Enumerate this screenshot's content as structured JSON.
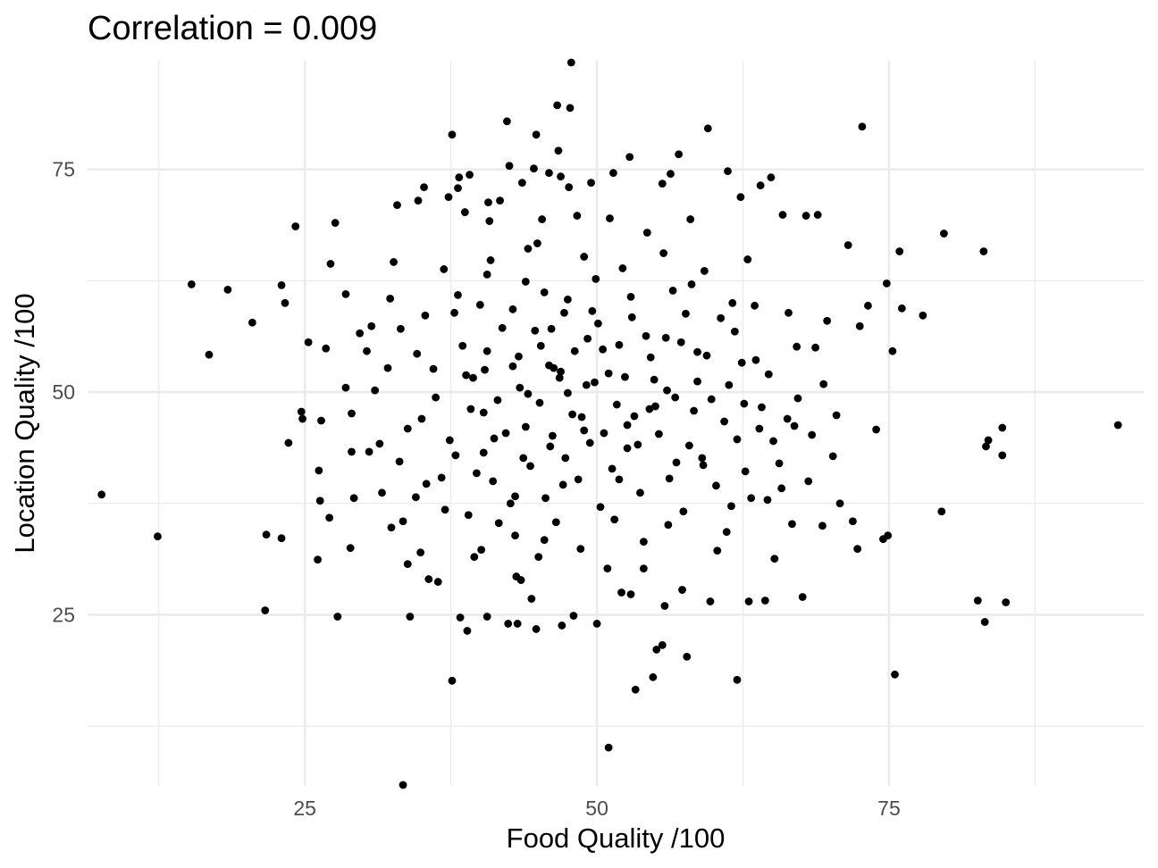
{
  "chart_data": {
    "type": "scatter",
    "title": "Correlation = 0.009",
    "xlabel": "Food Quality /100",
    "ylabel": "Location Quality /100",
    "xlim": [
      6.4,
      96.8
    ],
    "ylim": [
      5.8,
      87.2
    ],
    "x_ticks": [
      25,
      50,
      75
    ],
    "y_ticks": [
      25,
      50,
      75
    ],
    "grid": true,
    "legend": "none",
    "point_color": "#000000",
    "points": [
      [
        7.6,
        38.5
      ],
      [
        12.4,
        33.8
      ],
      [
        15.3,
        62.1
      ],
      [
        16.8,
        54.2
      ],
      [
        18.4,
        61.5
      ],
      [
        20.5,
        57.8
      ],
      [
        21.6,
        25.5
      ],
      [
        21.7,
        34.0
      ],
      [
        23.0,
        62.0
      ],
      [
        23.3,
        60.0
      ],
      [
        23.0,
        33.6
      ],
      [
        23.6,
        44.3
      ],
      [
        24.2,
        68.6
      ],
      [
        24.7,
        47.8
      ],
      [
        24.8,
        47.0
      ],
      [
        25.3,
        55.6
      ],
      [
        26.2,
        41.2
      ],
      [
        26.3,
        37.8
      ],
      [
        26.4,
        46.8
      ],
      [
        26.8,
        54.9
      ],
      [
        27.1,
        35.9
      ],
      [
        27.2,
        64.4
      ],
      [
        27.6,
        69.0
      ],
      [
        27.8,
        24.8
      ],
      [
        28.5,
        50.5
      ],
      [
        28.5,
        61.0
      ],
      [
        28.9,
        32.5
      ],
      [
        29.0,
        47.6
      ],
      [
        29.0,
        43.3
      ],
      [
        29.2,
        38.1
      ],
      [
        29.7,
        56.6
      ],
      [
        30.3,
        54.6
      ],
      [
        30.7,
        57.4
      ],
      [
        31.4,
        44.2
      ],
      [
        31.6,
        38.7
      ],
      [
        32.3,
        60.5
      ],
      [
        32.4,
        34.8
      ],
      [
        32.6,
        64.6
      ],
      [
        32.9,
        71.0
      ],
      [
        33.1,
        42.2
      ],
      [
        33.4,
        5.9
      ],
      [
        33.4,
        35.5
      ],
      [
        33.8,
        30.7
      ],
      [
        34.0,
        24.8
      ],
      [
        34.5,
        38.2
      ],
      [
        34.7,
        71.5
      ],
      [
        34.9,
        32.0
      ],
      [
        35.2,
        73.0
      ],
      [
        35.4,
        39.7
      ],
      [
        35.6,
        29.0
      ],
      [
        36.0,
        52.6
      ],
      [
        36.4,
        28.7
      ],
      [
        37.0,
        36.8
      ],
      [
        37.3,
        71.9
      ],
      [
        37.6,
        17.6
      ],
      [
        37.6,
        78.9
      ],
      [
        37.8,
        58.9
      ],
      [
        38.1,
        72.9
      ],
      [
        38.2,
        74.1
      ],
      [
        38.3,
        24.7
      ],
      [
        38.7,
        70.2
      ],
      [
        38.9,
        23.2
      ],
      [
        39.1,
        74.4
      ],
      [
        39.4,
        51.6
      ],
      [
        39.5,
        31.5
      ],
      [
        40.1,
        32.3
      ],
      [
        40.3,
        43.2
      ],
      [
        40.6,
        24.8
      ],
      [
        40.6,
        63.2
      ],
      [
        40.7,
        71.3
      ],
      [
        40.8,
        69.2
      ],
      [
        40.6,
        54.6
      ],
      [
        41.1,
        40.0
      ],
      [
        41.6,
        35.3
      ],
      [
        41.7,
        71.5
      ],
      [
        42.3,
        80.4
      ],
      [
        42.4,
        24.0
      ],
      [
        42.5,
        75.4
      ],
      [
        42.8,
        52.9
      ],
      [
        43.0,
        38.3
      ],
      [
        43.1,
        29.3
      ],
      [
        43.2,
        24.0
      ],
      [
        43.5,
        28.9
      ],
      [
        43.6,
        73.5
      ],
      [
        43.9,
        46.1
      ],
      [
        43.9,
        62.4
      ],
      [
        44.1,
        66.1
      ],
      [
        44.4,
        26.8
      ],
      [
        44.6,
        75.1
      ],
      [
        44.8,
        23.4
      ],
      [
        44.8,
        78.9
      ],
      [
        45.0,
        31.5
      ],
      [
        45.2,
        55.2
      ],
      [
        45.3,
        69.4
      ],
      [
        45.5,
        33.4
      ],
      [
        45.9,
        74.6
      ],
      [
        46.1,
        57.1
      ],
      [
        46.3,
        52.7
      ],
      [
        46.6,
        82.2
      ],
      [
        46.7,
        77.1
      ],
      [
        46.9,
        74.2
      ],
      [
        46.9,
        52.3
      ],
      [
        47.0,
        23.8
      ],
      [
        47.2,
        58.9
      ],
      [
        47.5,
        60.4
      ],
      [
        47.7,
        81.9
      ],
      [
        47.8,
        87.0
      ],
      [
        47.6,
        73.0
      ],
      [
        47.9,
        47.5
      ],
      [
        48.0,
        24.9
      ],
      [
        48.3,
        69.8
      ],
      [
        48.6,
        32.4
      ],
      [
        48.9,
        45.7
      ],
      [
        49.2,
        56.0
      ],
      [
        49.5,
        73.5
      ],
      [
        49.8,
        51.1
      ],
      [
        50.0,
        24.0
      ],
      [
        50.6,
        45.4
      ],
      [
        50.9,
        30.2
      ],
      [
        51.0,
        10.1
      ],
      [
        51.1,
        69.5
      ],
      [
        51.4,
        74.6
      ],
      [
        51.5,
        35.7
      ],
      [
        51.9,
        40.2
      ],
      [
        52.1,
        27.5
      ],
      [
        52.6,
        46.3
      ],
      [
        52.8,
        76.4
      ],
      [
        52.9,
        27.3
      ],
      [
        53.3,
        16.6
      ],
      [
        53.5,
        44.1
      ],
      [
        54.0,
        30.2
      ],
      [
        54.3,
        67.9
      ],
      [
        54.5,
        48.1
      ],
      [
        54.8,
        18.0
      ],
      [
        55.1,
        21.1
      ],
      [
        55.6,
        21.6
      ],
      [
        55.6,
        73.4
      ],
      [
        55.8,
        26.0
      ],
      [
        56.1,
        35.1
      ],
      [
        56.3,
        74.5
      ],
      [
        56.7,
        49.4
      ],
      [
        57.0,
        76.7
      ],
      [
        57.3,
        27.8
      ],
      [
        57.7,
        20.3
      ],
      [
        58.0,
        69.4
      ],
      [
        58.6,
        54.5
      ],
      [
        59.0,
        42.6
      ],
      [
        59.5,
        79.6
      ],
      [
        59.7,
        26.5
      ],
      [
        60.3,
        32.2
      ],
      [
        60.6,
        58.3
      ],
      [
        61.2,
        74.8
      ],
      [
        61.6,
        60.0
      ],
      [
        62.0,
        17.7
      ],
      [
        62.3,
        71.9
      ],
      [
        62.6,
        48.7
      ],
      [
        63.0,
        26.5
      ],
      [
        63.2,
        38.1
      ],
      [
        63.6,
        53.6
      ],
      [
        64.0,
        73.2
      ],
      [
        64.4,
        26.6
      ],
      [
        64.9,
        74.1
      ],
      [
        65.2,
        31.3
      ],
      [
        65.6,
        42.0
      ],
      [
        65.9,
        69.9
      ],
      [
        66.3,
        47.0
      ],
      [
        66.7,
        35.2
      ],
      [
        67.1,
        55.1
      ],
      [
        67.6,
        27.0
      ],
      [
        67.9,
        69.8
      ],
      [
        68.4,
        45.2
      ],
      [
        68.9,
        69.9
      ],
      [
        69.3,
        35.0
      ],
      [
        69.7,
        58.0
      ],
      [
        70.2,
        42.8
      ],
      [
        70.8,
        37.5
      ],
      [
        71.5,
        66.5
      ],
      [
        71.9,
        35.5
      ],
      [
        72.3,
        32.4
      ],
      [
        72.5,
        57.4
      ],
      [
        72.7,
        79.8
      ],
      [
        73.2,
        59.7
      ],
      [
        73.9,
        45.8
      ],
      [
        74.5,
        33.5
      ],
      [
        74.8,
        62.2
      ],
      [
        74.9,
        33.9
      ],
      [
        75.3,
        54.6
      ],
      [
        75.5,
        18.3
      ],
      [
        75.9,
        65.8
      ],
      [
        76.1,
        59.4
      ],
      [
        77.9,
        58.6
      ],
      [
        79.5,
        36.6
      ],
      [
        79.7,
        67.8
      ],
      [
        82.6,
        26.6
      ],
      [
        83.1,
        65.8
      ],
      [
        83.2,
        24.2
      ],
      [
        83.3,
        43.9
      ],
      [
        83.5,
        44.6
      ],
      [
        84.7,
        46.0
      ],
      [
        84.7,
        42.9
      ],
      [
        85.0,
        26.4
      ],
      [
        94.6,
        46.3
      ],
      [
        26.1,
        31.2
      ],
      [
        30.5,
        43.3
      ],
      [
        36.9,
        63.8
      ],
      [
        39.2,
        48.1
      ],
      [
        44.1,
        49.8
      ],
      [
        48.4,
        40.2
      ],
      [
        52.4,
        51.7
      ],
      [
        56.8,
        42.1
      ],
      [
        60.9,
        46.7
      ],
      [
        64.7,
        52.0
      ],
      [
        68.1,
        40.0
      ],
      [
        31.0,
        50.2
      ],
      [
        35.3,
        58.6
      ],
      [
        41.2,
        44.8
      ],
      [
        45.6,
        38.1
      ],
      [
        49.9,
        62.7
      ],
      [
        54.2,
        56.3
      ],
      [
        58.3,
        47.9
      ],
      [
        62.7,
        41.1
      ],
      [
        66.4,
        58.9
      ],
      [
        70.5,
        47.4
      ],
      [
        33.8,
        45.9
      ],
      [
        38.5,
        55.2
      ],
      [
        42.8,
        59.3
      ],
      [
        46.2,
        45.1
      ],
      [
        50.5,
        54.8
      ],
      [
        53.7,
        38.7
      ],
      [
        57.6,
        58.8
      ],
      [
        61.3,
        50.8
      ],
      [
        65.1,
        44.5
      ],
      [
        36.2,
        49.4
      ],
      [
        40.4,
        52.5
      ],
      [
        44.7,
        56.9
      ],
      [
        47.3,
        42.6
      ],
      [
        51.7,
        48.6
      ],
      [
        55.3,
        45.3
      ],
      [
        59.4,
        54.1
      ],
      [
        63.5,
        59.7
      ],
      [
        67.2,
        49.3
      ],
      [
        34.6,
        54.3
      ],
      [
        39.7,
        40.9
      ],
      [
        43.4,
        50.5
      ],
      [
        46.8,
        51.6
      ],
      [
        49.4,
        44.3
      ],
      [
        52.9,
        60.7
      ],
      [
        56.0,
        50.2
      ],
      [
        60.2,
        39.5
      ],
      [
        64.1,
        48.3
      ],
      [
        37.4,
        44.6
      ],
      [
        41.9,
        57.2
      ],
      [
        45.1,
        48.8
      ],
      [
        48.1,
        54.6
      ],
      [
        51.3,
        41.4
      ],
      [
        54.6,
        53.9
      ],
      [
        57.9,
        44.0
      ],
      [
        61.8,
        56.8
      ],
      [
        65.8,
        39.2
      ],
      [
        32.1,
        52.7
      ],
      [
        36.7,
        40.4
      ],
      [
        40.0,
        59.8
      ],
      [
        43.7,
        42.6
      ],
      [
        47.5,
        49.9
      ],
      [
        50.1,
        57.7
      ],
      [
        53.2,
        47.3
      ],
      [
        56.5,
        61.4
      ],
      [
        59.8,
        49.2
      ],
      [
        63.9,
        45.9
      ],
      [
        68.7,
        55.0
      ],
      [
        35.0,
        47.0
      ],
      [
        38.8,
        51.9
      ],
      [
        42.2,
        45.4
      ],
      [
        45.9,
        53.0
      ],
      [
        49.1,
        50.8
      ],
      [
        52.6,
        43.7
      ],
      [
        55.9,
        56.1
      ],
      [
        59.1,
        41.8
      ],
      [
        62.4,
        53.3
      ],
      [
        66.9,
        46.2
      ],
      [
        33.2,
        57.1
      ],
      [
        37.9,
        42.9
      ],
      [
        41.5,
        49.1
      ],
      [
        44.3,
        41.7
      ],
      [
        48.7,
        47.2
      ],
      [
        51.9,
        55.3
      ],
      [
        55.0,
        48.4
      ],
      [
        58.6,
        51.2
      ],
      [
        62.0,
        44.7
      ],
      [
        69.4,
        50.9
      ],
      [
        39.0,
        36.2
      ],
      [
        43.0,
        33.9
      ],
      [
        46.5,
        35.4
      ],
      [
        50.3,
        37.1
      ],
      [
        54.0,
        33.2
      ],
      [
        57.4,
        36.6
      ],
      [
        61.1,
        34.3
      ],
      [
        64.6,
        37.9
      ],
      [
        40.9,
        64.8
      ],
      [
        44.9,
        66.7
      ],
      [
        48.9,
        65.2
      ],
      [
        52.2,
        63.9
      ],
      [
        55.7,
        65.6
      ],
      [
        59.2,
        63.6
      ],
      [
        62.9,
        64.9
      ],
      [
        47.1,
        39.6
      ],
      [
        53.0,
        58.4
      ],
      [
        45.5,
        61.2
      ],
      [
        56.2,
        40.3
      ],
      [
        49.6,
        59.1
      ],
      [
        38.1,
        60.9
      ],
      [
        42.6,
        37.5
      ],
      [
        58.1,
        62.1
      ],
      [
        61.5,
        37.2
      ],
      [
        46.0,
        43.9
      ],
      [
        51.0,
        52.1
      ],
      [
        54.9,
        51.4
      ],
      [
        43.3,
        54.0
      ],
      [
        57.2,
        55.6
      ],
      [
        40.3,
        47.7
      ]
    ]
  }
}
